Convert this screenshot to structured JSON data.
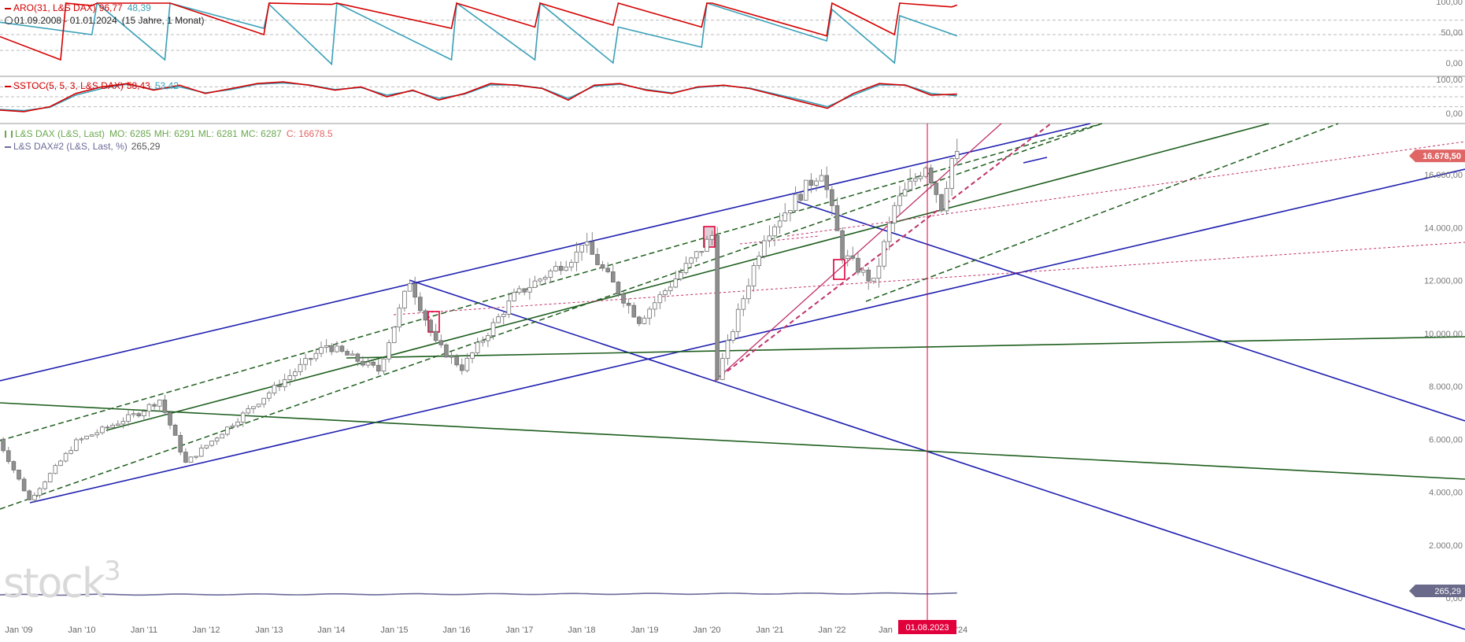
{
  "colors": {
    "aro_up": "#d40000",
    "aro_down": "#3aa0b8",
    "sstoc_k": "#d40000",
    "sstoc_d": "#3aa0b8",
    "price_legend": "#6aa84f",
    "price_c": "#e06666",
    "dax2_line": "#6a6a9a",
    "channel_blue": "#1f1fb0",
    "channel_green": "#1e5e1e",
    "trend_pink": "#c0306a",
    "marker": "#e2003c",
    "axis_text": "#777777",
    "grid": "#bbbbbb"
  },
  "panels": {
    "aro": {
      "name": "ARO(31, L&S DAX)",
      "up_value": "96,77",
      "down_value": "48,39",
      "range_text": "01.09.2008 - 01.01.2024",
      "period_text": "(15 Jahre, 1 Monat)",
      "axis_labels": [
        "100,00",
        "50,00",
        "0,00"
      ]
    },
    "sstoc": {
      "name": "SSTOC(5, 5, 3, L&S DAX)",
      "k_value": "58,43",
      "d_value": "53,42",
      "axis_labels": [
        "100,00",
        "0,00"
      ]
    },
    "price": {
      "name": "L&S DAX (L&S, Last)",
      "mo": "MO: 6285",
      "mh": "MH: 6291",
      "ml": "ML: 6281",
      "mc": "MC: 6287",
      "c": "C: 16678.5",
      "second_name": "L&S DAX#2 (L&S, Last, %)",
      "second_value": "265,29",
      "last_price_badge": "16.678,50",
      "second_badge": "265,29",
      "axis_labels": [
        "16.000,00",
        "14.000,00",
        "12.000,00",
        "10.000,00",
        "8.000,00",
        "6.000,00",
        "4.000,00",
        "2.000,00",
        "0,00"
      ]
    }
  },
  "x_axis": {
    "labels": [
      "Jan '09",
      "Jan '10",
      "Jan '11",
      "Jan '12",
      "Jan '13",
      "Jan '14",
      "Jan '15",
      "Jan '16",
      "Jan '17",
      "Jan '18",
      "Jan '19",
      "Jan '20",
      "Jan '21",
      "Jan '22",
      "Jan",
      "'24"
    ],
    "cursor_label": "01.08.2023"
  },
  "watermark": "stock3",
  "chart_data": [
    {
      "type": "line",
      "panel": "ARO",
      "ylim": [
        0,
        100
      ],
      "x_range": [
        "2008-09",
        "2024-01"
      ],
      "series": [
        {
          "name": "ARO up",
          "x": [
            "2008-09",
            "2009-09",
            "2009-10",
            "2010-03",
            "2010-04",
            "2011-05",
            "2011-06",
            "2012-12",
            "2013-01",
            "2014-01",
            "2014-02",
            "2015-12",
            "2016-01",
            "2017-04",
            "2017-05",
            "2018-07",
            "2018-08",
            "2019-12",
            "2020-01",
            "2020-02",
            "2021-12",
            "2022-01",
            "2023-01",
            "2023-02",
            "2023-12",
            "2024-01"
          ],
          "values": [
            48,
            10,
            100,
            96,
            100,
            100,
            100,
            50,
            100,
            98,
            100,
            60,
            100,
            62,
            100,
            65,
            100,
            62,
            100,
            100,
            48,
            100,
            50,
            100,
            94,
            97
          ]
        },
        {
          "name": "ARO down",
          "x": [
            "2008-09",
            "2010-03",
            "2010-04",
            "2011-05",
            "2011-06",
            "2012-12",
            "2013-01",
            "2014-01",
            "2014-02",
            "2015-12",
            "2016-01",
            "2017-04",
            "2017-05",
            "2018-07",
            "2018-08",
            "2019-12",
            "2020-01",
            "2021-12",
            "2022-01",
            "2023-01",
            "2023-02",
            "2024-01"
          ],
          "values": [
            70,
            50,
            100,
            10,
            100,
            60,
            98,
            3,
            100,
            10,
            100,
            10,
            100,
            5,
            62,
            30,
            100,
            40,
            90,
            5,
            80,
            48
          ]
        }
      ]
    },
    {
      "type": "line",
      "panel": "SSTOC",
      "ylim": [
        0,
        100
      ],
      "series": [
        {
          "name": "SSTOC %K",
          "values": [
            10,
            5,
            20,
            60,
            80,
            90,
            70,
            85,
            60,
            75,
            90,
            95,
            85,
            70,
            80,
            50,
            70,
            40,
            60,
            90,
            85,
            75,
            40,
            85,
            90,
            70,
            60,
            80,
            85,
            75,
            55,
            35,
            15,
            60,
            90,
            85,
            55,
            58
          ]
        },
        {
          "name": "SSTOC %D",
          "values": [
            12,
            8,
            18,
            55,
            75,
            88,
            72,
            80,
            62,
            72,
            88,
            92,
            86,
            72,
            78,
            55,
            68,
            45,
            58,
            86,
            86,
            76,
            45,
            82,
            88,
            72,
            62,
            78,
            84,
            76,
            58,
            40,
            20,
            55,
            86,
            86,
            60,
            53
          ]
        }
      ]
    },
    {
      "type": "candlestick",
      "panel": "price",
      "ylim": [
        0,
        17000
      ],
      "x": [
        "Jan '09",
        "Jan '10",
        "Jan '11",
        "Jan '12",
        "Jan '13",
        "Jan '14",
        "Jan '15",
        "Jan '16",
        "Jan '17",
        "Jan '18",
        "Jan '19",
        "Jan '20",
        "Jan '21",
        "Jan '22",
        "Jan '23",
        "Jan '24"
      ],
      "annual_closes": [
        4300,
        5900,
        7000,
        5900,
        7700,
        9600,
        9800,
        10500,
        11500,
        13200,
        10500,
        13300,
        13700,
        15900,
        14000,
        16678.5
      ],
      "last": 16678.5,
      "yearly_path": [
        {
          "x": "2008-09",
          "close": 6000
        },
        {
          "x": "2009-03",
          "close": 3700
        },
        {
          "x": "2009-12",
          "close": 5900
        },
        {
          "x": "2010-12",
          "close": 7000
        },
        {
          "x": "2011-04",
          "close": 7500
        },
        {
          "x": "2011-09",
          "close": 5100
        },
        {
          "x": "2012-12",
          "close": 7600
        },
        {
          "x": "2013-12",
          "close": 9550
        },
        {
          "x": "2014-10",
          "close": 8600
        },
        {
          "x": "2015-04",
          "close": 12000
        },
        {
          "x": "2015-09",
          "close": 9600
        },
        {
          "x": "2016-02",
          "close": 8700
        },
        {
          "x": "2016-12",
          "close": 11400
        },
        {
          "x": "2017-12",
          "close": 13000
        },
        {
          "x": "2018-01",
          "close": 13500
        },
        {
          "x": "2018-12",
          "close": 10500
        },
        {
          "x": "2019-12",
          "close": 13200
        },
        {
          "x": "2020-02",
          "close": 13700
        },
        {
          "x": "2020-03",
          "close": 8400
        },
        {
          "x": "2020-12",
          "close": 13700
        },
        {
          "x": "2021-11",
          "close": 16200
        },
        {
          "x": "2022-03",
          "close": 13000
        },
        {
          "x": "2022-09",
          "close": 11900
        },
        {
          "x": "2023-01",
          "close": 14800
        },
        {
          "x": "2023-07",
          "close": 16400
        },
        {
          "x": "2023-10",
          "close": 14800
        },
        {
          "x": "2023-12",
          "close": 16600
        },
        {
          "x": "2024-01",
          "close": 16678.5
        }
      ]
    }
  ]
}
